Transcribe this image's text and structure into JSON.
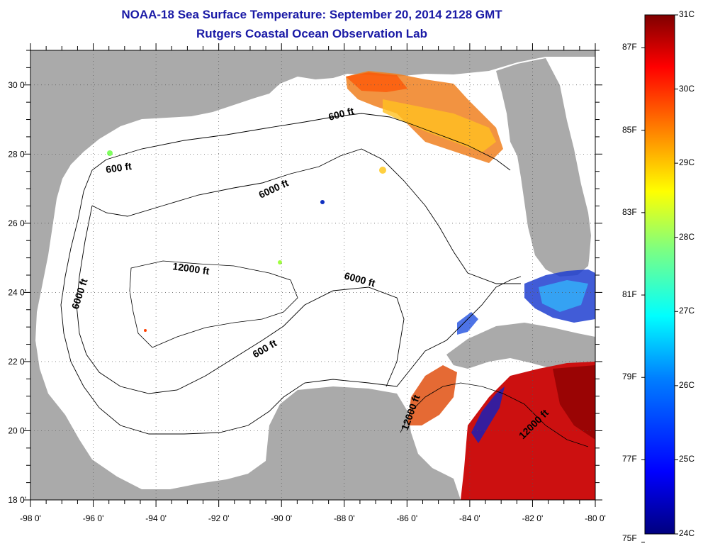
{
  "title": "NOAA-18 Sea Surface Temperature:  September 20, 2014 2128 GMT",
  "subtitle": "Rutgers Coastal Ocean Observation Lab",
  "map": {
    "lon_range": [
      -98,
      -80
    ],
    "lat_range": [
      18,
      31
    ],
    "x_ticks": [
      "-98 0'",
      "-96 0'",
      "-94 0'",
      "-92 0'",
      "-90 0'",
      "-88 0'",
      "-86 0'",
      "-84 0'",
      "-82 0'",
      "-80 0'"
    ],
    "y_ticks": [
      "18 0'",
      "20 0'",
      "22 0'",
      "24 0'",
      "26 0'",
      "28 0'",
      "30 0'"
    ],
    "grid": "dotted",
    "land_color": "#aaaaaa",
    "water_color": "#ffffff",
    "contour_labels": [
      "600 ft",
      "600 ft",
      "6000 ft",
      "6000 ft",
      "12000 ft",
      "6000 ft",
      "600 ft",
      "12000 ft",
      "12000 ft"
    ]
  },
  "colorbar": {
    "celsius_labels": [
      "31C",
      "30C",
      "29C",
      "28C",
      "27C",
      "26C",
      "25C",
      "24C"
    ],
    "fahrenheit_labels": [
      "87F",
      "85F",
      "83F",
      "81F",
      "79F",
      "77F",
      "75F"
    ],
    "colors": [
      "#00007f",
      "#0000ff",
      "#007fff",
      "#00ffff",
      "#7fff7f",
      "#ffff00",
      "#ff7f00",
      "#ff0000",
      "#7f0000"
    ]
  }
}
